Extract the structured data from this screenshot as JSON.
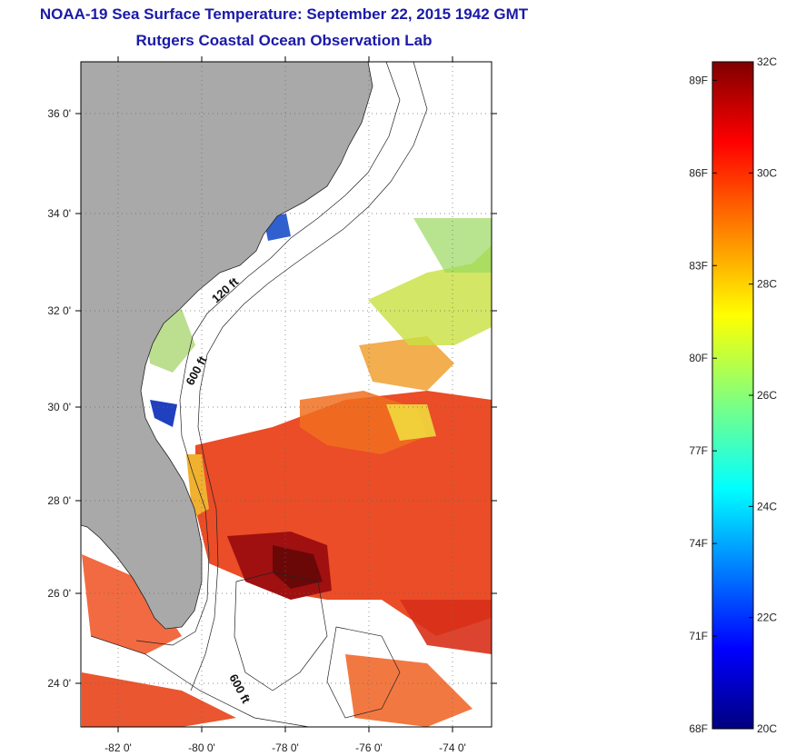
{
  "title_line1": "NOAA-19 Sea Surface Temperature:  September 22, 2015 1942 GMT",
  "title_line2": "Rutgers Coastal Ocean Observation Lab",
  "lon_labels": [
    "-82 0'",
    "-80 0'",
    "-78 0'",
    "-76 0'",
    "-74 0'"
  ],
  "lat_labels": [
    "36 0'",
    "34 0'",
    "32 0'",
    "30 0'",
    "28 0'",
    "26 0'",
    "24 0'"
  ],
  "contour_labels": [
    "120 ft",
    "600 ft",
    "600 ft"
  ],
  "colorbar": {
    "fahrenheit_labels": [
      "89F",
      "86F",
      "83F",
      "80F",
      "77F",
      "74F",
      "71F",
      "68F"
    ],
    "celsius_labels": [
      "32C",
      "30C",
      "28C",
      "26C",
      "24C",
      "22C",
      "20C"
    ],
    "min_c": 20,
    "max_c": 32
  },
  "colors": {
    "title": "#1a1aa8",
    "land": "#a9a9a9"
  }
}
